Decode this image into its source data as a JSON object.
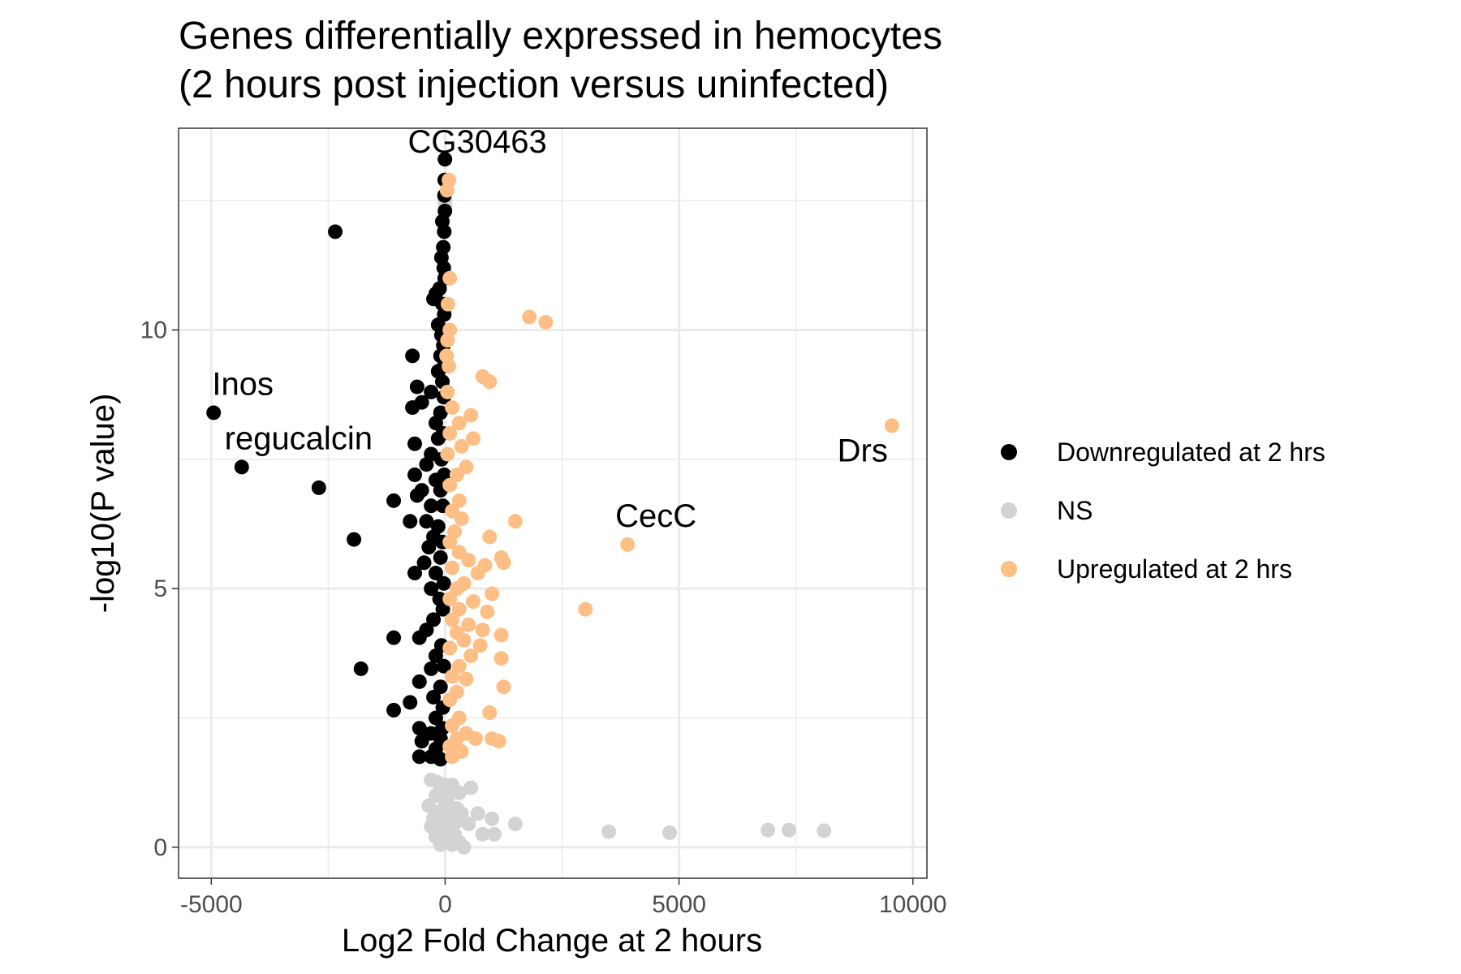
{
  "chart_data": {
    "type": "scatter",
    "title_line1": "Genes differentially expressed in hemocytes",
    "title_line2": "(2 hours post injection versus uninfected)",
    "xlabel": "Log2 Fold Change at 2 hours",
    "ylabel": "-log10(P value)",
    "xlim": [
      -5700,
      10300
    ],
    "ylim": [
      -0.6,
      13.9
    ],
    "x_ticks": [
      -5000,
      0,
      5000,
      10000
    ],
    "x_tick_labels": [
      "-5000",
      "0",
      "5000",
      "10000"
    ],
    "y_ticks": [
      0,
      5,
      10
    ],
    "y_tick_labels": [
      "0",
      "5",
      "10"
    ],
    "x_minor_ticks": [
      -2500,
      2500,
      7500
    ],
    "y_minor_ticks": [
      2.5,
      7.5,
      12.5
    ],
    "grid": true,
    "legend_position": "right",
    "series": [
      {
        "name": "Downregulated at 2 hrs",
        "color": "#000000",
        "points": [
          [
            -5,
            13.3
          ],
          [
            -10,
            12.9
          ],
          [
            -15,
            12.6
          ],
          [
            -5,
            12.3
          ],
          [
            -60,
            12.1
          ],
          [
            -20,
            11.9
          ],
          [
            -40,
            11.6
          ],
          [
            -80,
            11.4
          ],
          [
            -30,
            11.2
          ],
          [
            -10,
            11.0
          ],
          [
            -120,
            10.8
          ],
          [
            -200,
            10.7
          ],
          [
            -60,
            10.5
          ],
          [
            -250,
            10.6
          ],
          [
            -20,
            10.3
          ],
          [
            -150,
            10.1
          ],
          [
            -80,
            9.9
          ],
          [
            -40,
            9.7
          ],
          [
            -100,
            9.5
          ],
          [
            -700,
            9.5
          ],
          [
            -20,
            9.3
          ],
          [
            -150,
            9.2
          ],
          [
            -60,
            9.0
          ],
          [
            -600,
            8.9
          ],
          [
            -300,
            8.8
          ],
          [
            -30,
            8.7
          ],
          [
            -700,
            8.5
          ],
          [
            -500,
            8.6
          ],
          [
            -100,
            8.4
          ],
          [
            -200,
            8.2
          ],
          [
            -50,
            8.0
          ],
          [
            -650,
            7.8
          ],
          [
            -150,
            7.9
          ],
          [
            -300,
            7.6
          ],
          [
            -80,
            7.5
          ],
          [
            -400,
            7.4
          ],
          [
            -20,
            7.2
          ],
          [
            -650,
            7.2
          ],
          [
            -200,
            7.1
          ],
          [
            -500,
            6.9
          ],
          [
            -100,
            6.9
          ],
          [
            -600,
            6.8
          ],
          [
            -300,
            6.6
          ],
          [
            -1100,
            6.7
          ],
          [
            -50,
            6.6
          ],
          [
            -750,
            6.3
          ],
          [
            -400,
            6.3
          ],
          [
            -150,
            6.2
          ],
          [
            -250,
            6.0
          ],
          [
            -60,
            5.9
          ],
          [
            -350,
            5.8
          ],
          [
            -100,
            5.6
          ],
          [
            -450,
            5.5
          ],
          [
            -200,
            5.3
          ],
          [
            -650,
            5.3
          ],
          [
            -30,
            5.1
          ],
          [
            -300,
            5.0
          ],
          [
            -120,
            4.8
          ],
          [
            -50,
            4.6
          ],
          [
            -250,
            4.4
          ],
          [
            -400,
            4.2
          ],
          [
            -550,
            4.05
          ],
          [
            -1100,
            4.05
          ],
          [
            -80,
            3.9
          ],
          [
            -200,
            3.7
          ],
          [
            -30,
            3.5
          ],
          [
            -300,
            3.45
          ],
          [
            -1800,
            3.45
          ],
          [
            -550,
            3.2
          ],
          [
            -100,
            3.1
          ],
          [
            -250,
            2.9
          ],
          [
            -750,
            2.8
          ],
          [
            -50,
            2.7
          ],
          [
            -1100,
            2.65
          ],
          [
            -200,
            2.5
          ],
          [
            -60,
            2.3
          ],
          [
            -550,
            2.3
          ],
          [
            -300,
            2.2
          ],
          [
            -100,
            2.1
          ],
          [
            -500,
            2.05
          ],
          [
            -200,
            1.9
          ],
          [
            -550,
            1.75
          ],
          [
            -300,
            1.75
          ],
          [
            -100,
            1.7
          ],
          [
            -2350,
            11.9
          ],
          [
            -4950,
            8.4
          ],
          [
            -4350,
            7.35
          ],
          [
            -2700,
            6.95
          ],
          [
            -1950,
            5.95
          ]
        ]
      },
      {
        "name": "NS",
        "color": "#d3d3d3",
        "points": [
          [
            -10,
            12.5
          ],
          [
            0,
            12.4
          ],
          [
            -300,
            1.3
          ],
          [
            -150,
            1.25
          ],
          [
            0,
            1.2
          ],
          [
            150,
            1.2
          ],
          [
            550,
            1.15
          ],
          [
            300,
            1.05
          ],
          [
            -200,
            1.0
          ],
          [
            50,
            0.95
          ],
          [
            -350,
            0.8
          ],
          [
            0,
            0.8
          ],
          [
            250,
            0.75
          ],
          [
            -100,
            0.7
          ],
          [
            350,
            0.65
          ],
          [
            100,
            0.6
          ],
          [
            -250,
            0.55
          ],
          [
            700,
            0.65
          ],
          [
            1000,
            0.55
          ],
          [
            0,
            0.5
          ],
          [
            250,
            0.5
          ],
          [
            500,
            0.45
          ],
          [
            -300,
            0.4
          ],
          [
            100,
            0.35
          ],
          [
            -50,
            0.3
          ],
          [
            200,
            0.25
          ],
          [
            800,
            0.25
          ],
          [
            1050,
            0.25
          ],
          [
            -200,
            0.2
          ],
          [
            0,
            0.15
          ],
          [
            300,
            0.1
          ],
          [
            -100,
            0.05
          ],
          [
            150,
            0.05
          ],
          [
            400,
            0.0
          ],
          [
            1500,
            0.45
          ],
          [
            3500,
            0.3
          ],
          [
            4800,
            0.28
          ],
          [
            6900,
            0.33
          ],
          [
            7350,
            0.33
          ],
          [
            8100,
            0.32
          ]
        ]
      },
      {
        "name": "Upregulated at 2 hrs",
        "color": "#fdbf85",
        "points": [
          [
            80,
            12.9
          ],
          [
            40,
            12.7
          ],
          [
            100,
            11.0
          ],
          [
            60,
            10.5
          ],
          [
            100,
            10.0
          ],
          [
            50,
            9.8
          ],
          [
            30,
            9.5
          ],
          [
            80,
            9.3
          ],
          [
            800,
            9.1
          ],
          [
            950,
            9.0
          ],
          [
            50,
            8.8
          ],
          [
            150,
            8.5
          ],
          [
            550,
            8.35
          ],
          [
            300,
            8.2
          ],
          [
            100,
            8.0
          ],
          [
            600,
            7.9
          ],
          [
            350,
            7.75
          ],
          [
            50,
            7.6
          ],
          [
            450,
            7.35
          ],
          [
            250,
            7.2
          ],
          [
            100,
            7.0
          ],
          [
            300,
            6.7
          ],
          [
            150,
            6.5
          ],
          [
            350,
            6.35
          ],
          [
            1500,
            6.3
          ],
          [
            200,
            6.1
          ],
          [
            950,
            6.0
          ],
          [
            100,
            5.9
          ],
          [
            300,
            5.7
          ],
          [
            1200,
            5.6
          ],
          [
            500,
            5.55
          ],
          [
            850,
            5.45
          ],
          [
            1250,
            5.5
          ],
          [
            150,
            5.4
          ],
          [
            700,
            5.3
          ],
          [
            400,
            5.1
          ],
          [
            250,
            5.0
          ],
          [
            1000,
            4.9
          ],
          [
            100,
            4.8
          ],
          [
            600,
            4.75
          ],
          [
            300,
            4.6
          ],
          [
            900,
            4.55
          ],
          [
            150,
            4.4
          ],
          [
            500,
            4.3
          ],
          [
            800,
            4.2
          ],
          [
            250,
            4.15
          ],
          [
            1200,
            4.1
          ],
          [
            400,
            4.0
          ],
          [
            750,
            3.9
          ],
          [
            100,
            3.85
          ],
          [
            550,
            3.7
          ],
          [
            1200,
            3.65
          ],
          [
            300,
            3.5
          ],
          [
            150,
            3.3
          ],
          [
            450,
            3.25
          ],
          [
            1250,
            3.1
          ],
          [
            250,
            3.0
          ],
          [
            100,
            2.85
          ],
          [
            950,
            2.6
          ],
          [
            300,
            2.5
          ],
          [
            150,
            2.35
          ],
          [
            450,
            2.2
          ],
          [
            250,
            2.1
          ],
          [
            650,
            2.1
          ],
          [
            1000,
            2.1
          ],
          [
            1150,
            2.05
          ],
          [
            100,
            1.95
          ],
          [
            350,
            1.85
          ],
          [
            150,
            1.75
          ],
          [
            1800,
            10.25
          ],
          [
            2150,
            10.15
          ],
          [
            3000,
            4.6
          ],
          [
            3900,
            5.85
          ],
          [
            9550,
            8.15
          ]
        ]
      }
    ],
    "annotations": [
      {
        "label": "CG30463",
        "x": -5,
        "y": 13.3
      },
      {
        "label": "Inos",
        "x": -4950,
        "y": 8.4
      },
      {
        "label": "regucalcin",
        "x": -4350,
        "y": 7.35
      },
      {
        "label": "CecC",
        "x": 3900,
        "y": 5.85
      },
      {
        "label": "Drs",
        "x": 9550,
        "y": 8.15
      }
    ]
  }
}
